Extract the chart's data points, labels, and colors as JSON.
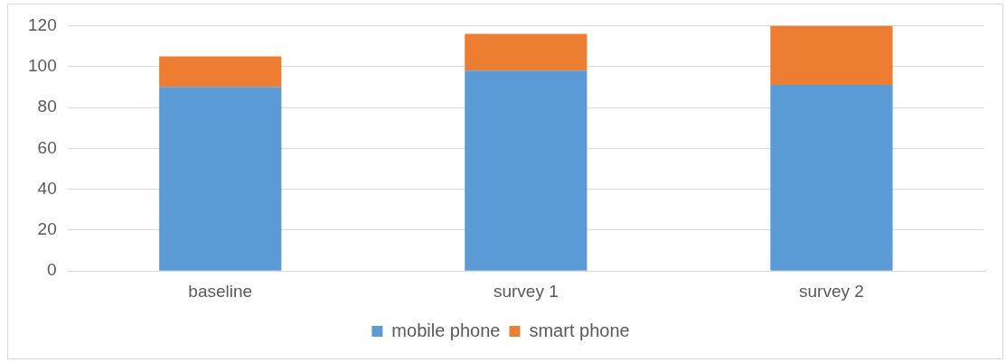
{
  "chart_data": {
    "type": "bar",
    "stacked": true,
    "categories": [
      "baseline",
      "survey 1",
      "survey 2"
    ],
    "series": [
      {
        "name": "mobile phone",
        "color": "#5b9bd5",
        "values": [
          90,
          98,
          91
        ]
      },
      {
        "name": "smart phone",
        "color": "#ed7d31",
        "values": [
          15,
          18,
          29
        ]
      }
    ],
    "ylim": [
      0,
      120
    ],
    "yticks": [
      0,
      20,
      40,
      60,
      80,
      100,
      120
    ],
    "grid": "y",
    "legend": "bottom"
  }
}
